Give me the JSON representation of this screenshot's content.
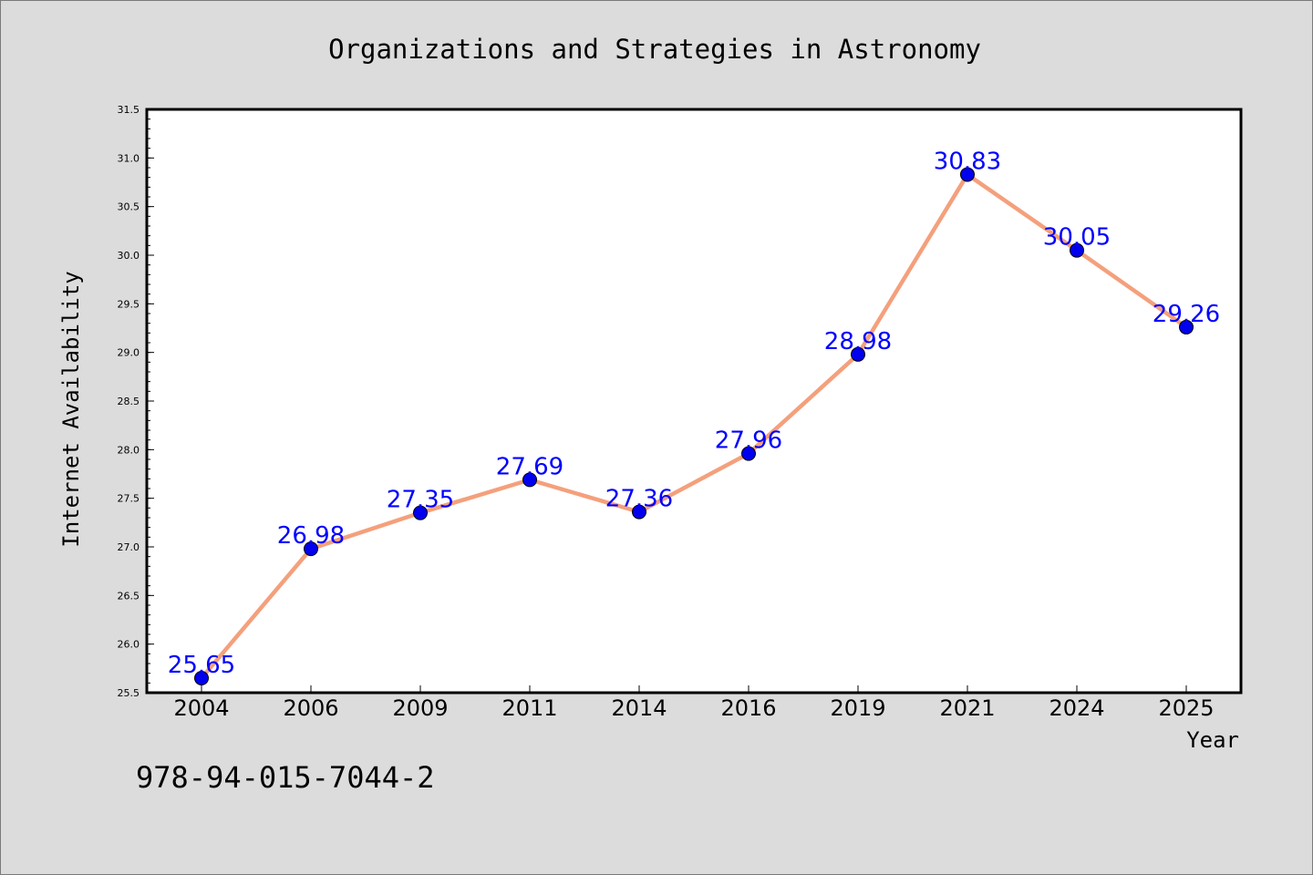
{
  "chart_data": {
    "type": "line",
    "title": "Organizations and Strategies in Astronomy",
    "xlabel": "Year",
    "ylabel": "Internet Availability",
    "categories": [
      "2004",
      "2006",
      "2009",
      "2011",
      "2014",
      "2016",
      "2019",
      "2021",
      "2024",
      "2025"
    ],
    "series": [
      {
        "values": [
          25.65,
          26.98,
          27.35,
          27.69,
          27.36,
          27.96,
          28.98,
          30.83,
          30.05,
          29.26
        ],
        "data_labels": [
          "25.65",
          "26.98",
          "27.35",
          "27.69",
          "27.36",
          "27.96",
          "28.98",
          "30.83",
          "30.05",
          "29.26"
        ],
        "line_color": "#f4a07c",
        "marker_color": "#0000ee"
      }
    ],
    "ylim": [
      25.5,
      31.5
    ],
    "yticks": [
      "25.5",
      "26.0",
      "26.5",
      "27.0",
      "27.5",
      "28.0",
      "28.5",
      "29.0",
      "29.5",
      "30.0",
      "30.5",
      "31.0",
      "31.5"
    ],
    "ytick_values": [
      25.5,
      26.0,
      26.5,
      27.0,
      27.5,
      28.0,
      28.5,
      29.0,
      29.5,
      30.0,
      30.5,
      31.0,
      31.5
    ],
    "grid": false,
    "label_color": "#0000ff"
  },
  "annotation": "978-94-015-7044-2"
}
